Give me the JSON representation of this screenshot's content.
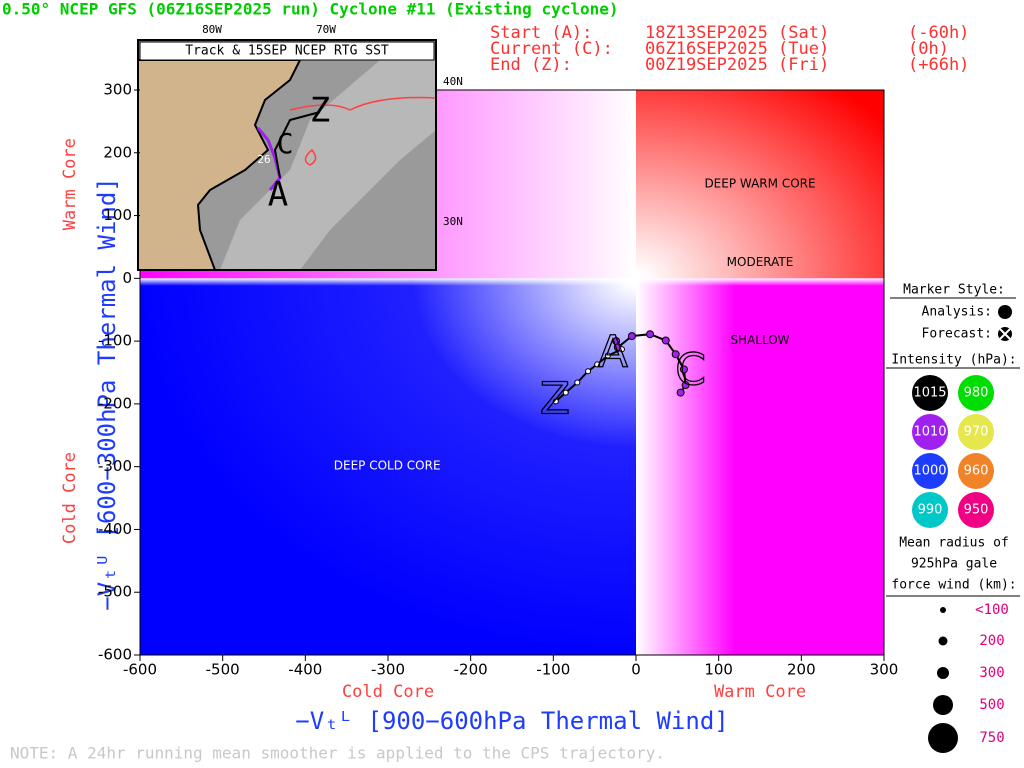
{
  "chart_data": {
    "type": "scatter",
    "title": "0.50° NCEP GFS (06Z16SEP2025 run) Cyclone #11 (Existing cyclone)",
    "xlabel": "−Vₜᴸ [900−600hPa Thermal Wind]",
    "ylabel": "−Vₜᵁ [600−300hPa Thermal Wind]",
    "xlim": [
      -600,
      300
    ],
    "ylim": [
      -600,
      300
    ],
    "xticks": [
      -600,
      -500,
      -400,
      -300,
      -200,
      -100,
      0,
      100,
      200,
      300
    ],
    "yticks": [
      -600,
      -500,
      -400,
      -300,
      -200,
      -100,
      0,
      100,
      200,
      300
    ],
    "x_side_labels": [
      "Cold Core",
      "Warm Core"
    ],
    "y_side_labels": [
      "Cold Core",
      "Warm Core"
    ],
    "series": [
      {
        "name": "Analysis:",
        "color": "#a020f0",
        "x": [
          -24,
          -22,
          -5,
          17,
          36,
          48,
          58,
          60,
          54
        ],
        "values": [
          -100,
          -110,
          -92,
          -89,
          -99,
          -121,
          -145,
          -170,
          -182
        ]
      },
      {
        "name": "Forecast:",
        "color": "#ffffff",
        "x": [
          -17,
          -34,
          -47,
          -58,
          -71,
          -85,
          -97
        ],
        "values": [
          -113,
          -123,
          -137,
          -148,
          -166,
          -182,
          -196
        ]
      }
    ],
    "markers": [
      {
        "label": "A",
        "x": -28,
        "y": -121
      },
      {
        "label": "C",
        "x": 66,
        "y": -150
      },
      {
        "label": "Z",
        "x": -98,
        "y": -196
      }
    ],
    "annotations": [
      {
        "text": "DEEP WARM CORE",
        "x": 150,
        "y": 150
      },
      {
        "text": "MODERATE",
        "x": 150,
        "y": 25
      },
      {
        "text": "SHALLOW",
        "x": 150,
        "y": -99
      },
      {
        "text": "DEEP COLD CORE",
        "x": -301,
        "y": -299
      }
    ]
  },
  "header": {
    "rows": [
      [
        "Start (A):",
        "18Z13SEP2025 (Sat)",
        "(-60h)"
      ],
      [
        "Current (C):",
        "06Z16SEP2025 (Tue)",
        "(0h)"
      ],
      [
        "End (Z):",
        "00Z19SEP2025 (Fri)",
        "(+66h)"
      ]
    ]
  },
  "inset": {
    "title": "Track & 15SEP NCEP RTG SST",
    "lon_labels": [
      "80W",
      "70W"
    ],
    "lat_labels": [
      "40N",
      "30N"
    ],
    "sst_label": "26",
    "track_labels": [
      "Z",
      "C",
      "A"
    ]
  },
  "side_panel": {
    "marker_title": "Marker Style:",
    "intensity_title": "Intensity (hPa):",
    "intensities": [
      {
        "label": "1015",
        "color": "#000000"
      },
      {
        "label": "980",
        "color": "#00dd00"
      },
      {
        "label": "1010",
        "color": "#a020f0"
      },
      {
        "label": "970",
        "color": "#e6e64d"
      },
      {
        "label": "1000",
        "color": "#1e3cff"
      },
      {
        "label": "960",
        "color": "#f08228"
      },
      {
        "label": "990",
        "color": "#00c8c8"
      },
      {
        "label": "950",
        "color": "#f00082"
      }
    ],
    "radius_title": [
      "Mean radius of",
      "925hPa gale",
      "force wind (km):"
    ],
    "radii": [
      "<100",
      "200",
      "300",
      "500",
      "750"
    ]
  },
  "note": "NOTE:  A 24hr running mean smoother is applied to the CPS trajectory."
}
